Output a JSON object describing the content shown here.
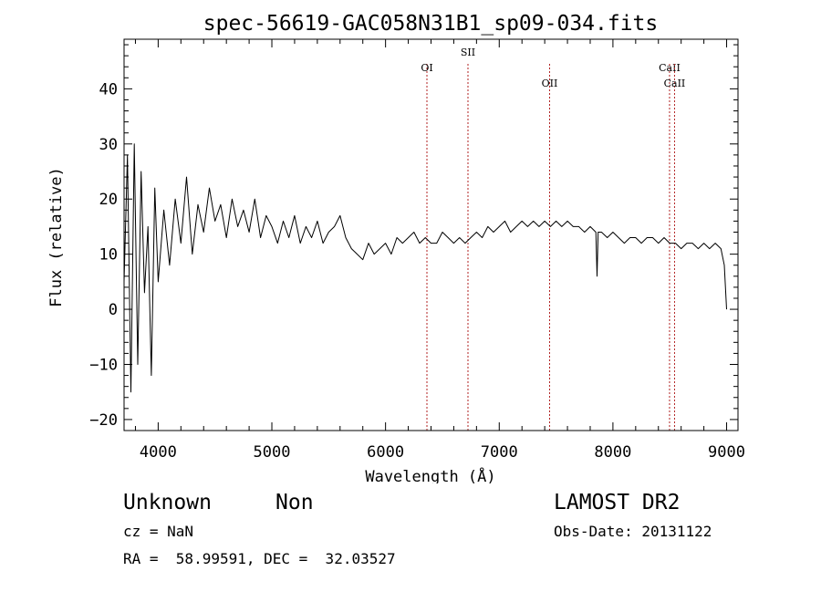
{
  "chart_data": {
    "type": "line",
    "title": "spec-56619-GAC058N31B1_sp09-034.fits",
    "xlabel": "Wavelength (Å)",
    "ylabel": "Flux (relative)",
    "xlim": [
      3700,
      9100
    ],
    "ylim": [
      -22,
      49
    ],
    "xticks": [
      4000,
      5000,
      6000,
      7000,
      8000,
      9000
    ],
    "yticks": [
      -20,
      -10,
      0,
      10,
      20,
      30,
      40
    ],
    "grid": false,
    "series": [
      {
        "x": [
          3700,
          3730,
          3760,
          3790,
          3820,
          3850,
          3880,
          3910,
          3940,
          3970,
          4000,
          4050,
          4100,
          4150,
          4200,
          4250,
          4300,
          4350,
          4400,
          4450,
          4500,
          4550,
          4600,
          4650,
          4700,
          4750,
          4800,
          4850,
          4900,
          4950,
          5000,
          5050,
          5100,
          5150,
          5200,
          5250,
          5300,
          5350,
          5400,
          5450,
          5500,
          5550,
          5600,
          5650,
          5700,
          5750,
          5800,
          5850,
          5900,
          5950,
          6000,
          6050,
          6100,
          6150,
          6200,
          6250,
          6300,
          6350,
          6400,
          6450,
          6500,
          6550,
          6600,
          6650,
          6700,
          6750,
          6800,
          6850,
          6900,
          6950,
          7000,
          7050,
          7100,
          7150,
          7200,
          7250,
          7300,
          7350,
          7400,
          7450,
          7500,
          7550,
          7600,
          7650,
          7700,
          7750,
          7800,
          7850,
          7860,
          7870,
          7900,
          7950,
          8000,
          8050,
          8100,
          8150,
          8200,
          8250,
          8300,
          8350,
          8400,
          8450,
          8500,
          8550,
          8600,
          8650,
          8700,
          8750,
          8800,
          8850,
          8900,
          8950,
          8980,
          9000
        ],
        "values": [
          5,
          28,
          -15,
          30,
          -10,
          25,
          3,
          15,
          -12,
          22,
          5,
          18,
          8,
          20,
          12,
          24,
          10,
          19,
          14,
          22,
          16,
          19,
          13,
          20,
          15,
          18,
          14,
          20,
          13,
          17,
          15,
          12,
          16,
          13,
          17,
          12,
          15,
          13,
          16,
          12,
          14,
          15,
          17,
          13,
          11,
          10,
          9,
          12,
          10,
          11,
          12,
          10,
          13,
          12,
          13,
          14,
          12,
          13,
          12,
          12,
          14,
          13,
          12,
          13,
          12,
          13,
          14,
          13,
          15,
          14,
          15,
          16,
          14,
          15,
          16,
          15,
          16,
          15,
          16,
          15,
          16,
          15,
          16,
          15,
          15,
          14,
          15,
          14,
          6,
          14,
          14,
          13,
          14,
          13,
          12,
          13,
          13,
          12,
          13,
          13,
          12,
          13,
          12,
          12,
          11,
          12,
          12,
          11,
          12,
          11,
          12,
          11,
          8,
          0
        ]
      }
    ],
    "lines": [
      {
        "label": "OI",
        "x": 6364
      },
      {
        "label": "SII",
        "x": 6725
      },
      {
        "label": "OII",
        "x": 7443
      },
      {
        "label": "CaII",
        "x": 8498
      },
      {
        "label": "CaII",
        "x": 8542
      }
    ]
  },
  "info": {
    "object_class": "Unknown",
    "subclass": "Non",
    "survey": "LAMOST DR2",
    "cz": "cz = NaN",
    "obs_date": "Obs-Date: 20131122",
    "coords": "RA =  58.99591, DEC =  32.03527"
  },
  "colors": {
    "spectrum": "#000000",
    "line_marker": "#b22222",
    "axis": "#000000"
  }
}
